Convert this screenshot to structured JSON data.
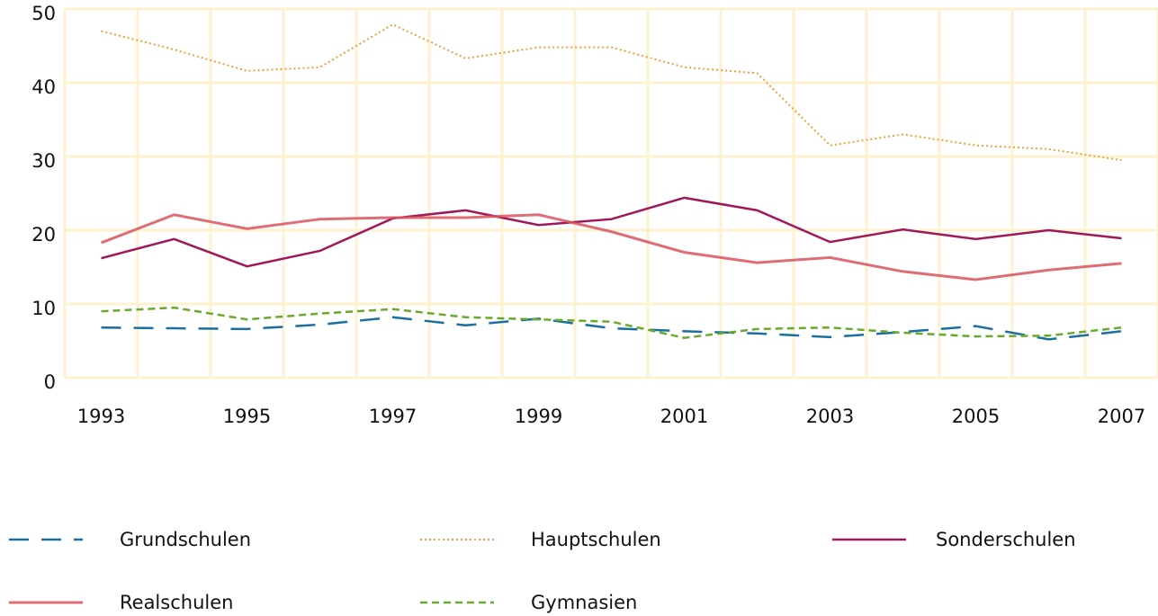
{
  "chart_data": {
    "type": "line",
    "categories": [
      "1993",
      null,
      "1995",
      null,
      "1997",
      null,
      "1999",
      null,
      "2001",
      null,
      "2003",
      null,
      "2005",
      null,
      "2007"
    ],
    "ylim": [
      0,
      50
    ],
    "yticks": [
      0,
      10,
      20,
      30,
      40,
      50
    ],
    "grid": true,
    "grid_color": "#fdf1cf",
    "series": [
      {
        "name": "Grundschulen",
        "color": "#1a6fa0",
        "dash": "dashed",
        "values": [
          6.8,
          6.7,
          6.6,
          7.2,
          8.2,
          7.1,
          8,
          6.7,
          6.3,
          6,
          5.5,
          6.2,
          7,
          5.2,
          6.3
        ]
      },
      {
        "name": "Hauptschulen",
        "color": "#e8a23a",
        "dash": "dotted",
        "values": [
          47,
          44.5,
          41.6,
          42.1,
          47.9,
          43.3,
          44.8,
          44.8,
          42.1,
          41.3,
          31.5,
          33,
          31.5,
          31,
          29.5
        ]
      },
      {
        "name": "Sonderschulen",
        "color": "#a0175a",
        "dash": "solid",
        "values": [
          16.2,
          18.8,
          15.1,
          17.2,
          21.6,
          22.7,
          20.7,
          21.5,
          24.4,
          22.7,
          18.4,
          20.1,
          18.8,
          20,
          18.9
        ]
      },
      {
        "name": "Realschulen",
        "color": "#d9545e",
        "dash": "textured",
        "values": [
          18.3,
          22.1,
          20.2,
          21.5,
          21.7,
          21.7,
          22.1,
          19.8,
          17,
          15.6,
          16.3,
          14.4,
          13.3,
          14.6,
          15.5
        ]
      },
      {
        "name": "Gymnasien",
        "color": "#6aaa2a",
        "dash": "short-dashed",
        "values": [
          9,
          9.5,
          7.9,
          8.7,
          9.3,
          8.2,
          7.9,
          7.6,
          5.4,
          6.6,
          6.8,
          6.1,
          5.6,
          5.7,
          6.8
        ]
      }
    ]
  }
}
